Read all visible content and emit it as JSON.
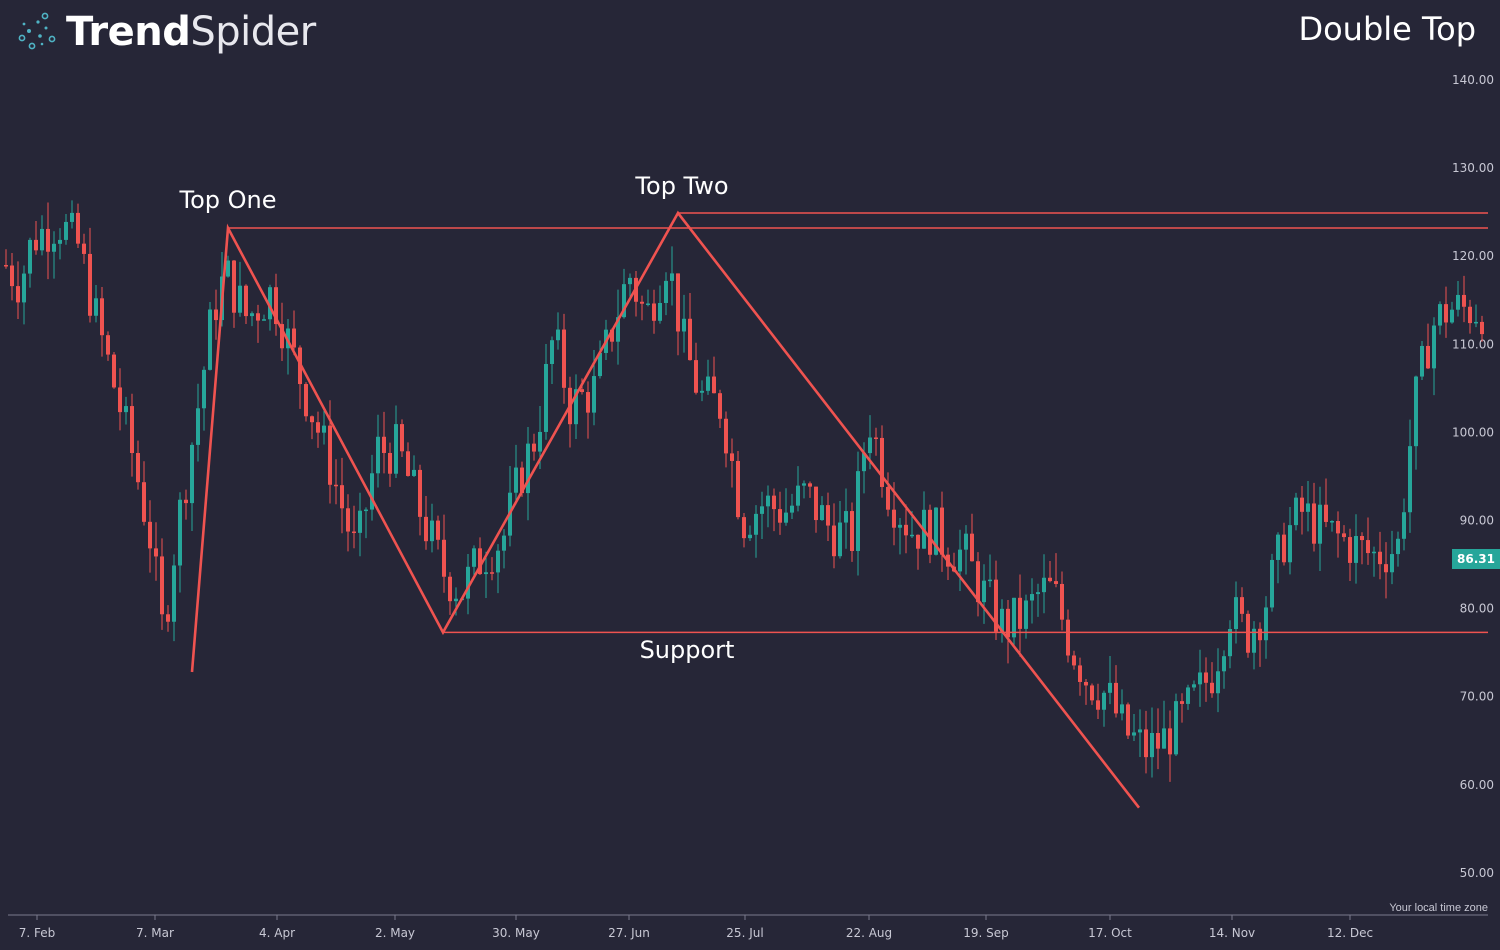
{
  "branding": {
    "logo_bold": "Trend",
    "logo_light": "Spider",
    "logo_icon": "spider-dots-icon"
  },
  "pattern_title": "Double Top",
  "annotations": {
    "top_one": "Top One",
    "top_two": "Top Two",
    "support": "Support"
  },
  "footer": {
    "timezone": "Your local time zone"
  },
  "colors": {
    "background": "#262637",
    "bullish": "#26a69a",
    "bearish": "#ef5350",
    "pattern_line": "#ef5350",
    "axis_text": "#c8c8d4",
    "last_price_bg": "#26a69a"
  },
  "chart_data": {
    "type": "candlestick",
    "title": "Double Top",
    "price_axis": {
      "ticks": [
        "140.00",
        "130.00",
        "120.00",
        "110.00",
        "100.00",
        "90.00",
        "80.00",
        "70.00",
        "60.00",
        "50.00"
      ],
      "range": [
        46,
        147
      ]
    },
    "time_axis": {
      "ticks": [
        "7. Feb",
        "7. Mar",
        "4. Apr",
        "2. May",
        "30. May",
        "27. Jun",
        "25. Jul",
        "22. Aug",
        "19. Sep",
        "17. Oct",
        "14. Nov",
        "12. Dec"
      ]
    },
    "last_price": "86.31",
    "horizontal_levels": [
      {
        "label": "Top One",
        "price": 123.2
      },
      {
        "label": "Top Two",
        "price": 124.9
      },
      {
        "label": "Support",
        "price": 77.3
      }
    ],
    "zigzag": [
      {
        "date": "Mar 9",
        "price": 72.8
      },
      {
        "date": "Mar 24",
        "price": 123.2
      },
      {
        "date": "May 19",
        "price": 77.3
      },
      {
        "date": "Jul 7",
        "price": 124.9
      },
      {
        "date": "Oct 26",
        "price": 57.4
      }
    ],
    "price_path": [
      {
        "date": "Jan 28",
        "price": 119
      },
      {
        "date": "Feb 1",
        "price": 117
      },
      {
        "date": "Feb 6",
        "price": 122
      },
      {
        "date": "Feb 12",
        "price": 124
      },
      {
        "date": "Feb 17",
        "price": 121
      },
      {
        "date": "Feb 21",
        "price": 113
      },
      {
        "date": "Feb 25",
        "price": 106
      },
      {
        "date": "Mar 2",
        "price": 97
      },
      {
        "date": "Mar 6",
        "price": 88
      },
      {
        "date": "Mar 9",
        "price": 77
      },
      {
        "date": "Mar 12",
        "price": 88
      },
      {
        "date": "Mar 17",
        "price": 102
      },
      {
        "date": "Mar 21",
        "price": 114
      },
      {
        "date": "Mar 24",
        "price": 118
      },
      {
        "date": "Mar 29",
        "price": 113
      },
      {
        "date": "Apr 4",
        "price": 116
      },
      {
        "date": "Apr 8",
        "price": 110
      },
      {
        "date": "Apr 13",
        "price": 103
      },
      {
        "date": "Apr 18",
        "price": 96
      },
      {
        "date": "Apr 24",
        "price": 86
      },
      {
        "date": "Apr 29",
        "price": 98
      },
      {
        "date": "May 4",
        "price": 98
      },
      {
        "date": "May 10",
        "price": 90
      },
      {
        "date": "May 15",
        "price": 84
      },
      {
        "date": "May 19",
        "price": 82
      },
      {
        "date": "May 24",
        "price": 86
      },
      {
        "date": "May 29",
        "price": 88
      },
      {
        "date": "Jun 2",
        "price": 95
      },
      {
        "date": "Jun 6",
        "price": 100
      },
      {
        "date": "Jun 10",
        "price": 111
      },
      {
        "date": "Jun 14",
        "price": 103
      },
      {
        "date": "Jun 20",
        "price": 105
      },
      {
        "date": "Jun 24",
        "price": 112
      },
      {
        "date": "Jun 28",
        "price": 118
      },
      {
        "date": "Jul 2",
        "price": 113
      },
      {
        "date": "Jul 7",
        "price": 120
      },
      {
        "date": "Jul 11",
        "price": 110
      },
      {
        "date": "Jul 15",
        "price": 104
      },
      {
        "date": "Jul 20",
        "price": 103
      },
      {
        "date": "Jul 25",
        "price": 90
      },
      {
        "date": "Jul 30",
        "price": 92
      },
      {
        "date": "Aug 4",
        "price": 91
      },
      {
        "date": "Aug 9",
        "price": 93
      },
      {
        "date": "Aug 15",
        "price": 89
      },
      {
        "date": "Aug 20",
        "price": 88
      },
      {
        "date": "Aug 24",
        "price": 102
      },
      {
        "date": "Aug 29",
        "price": 93
      },
      {
        "date": "Sep 3",
        "price": 89
      },
      {
        "date": "Sep 8",
        "price": 89
      },
      {
        "date": "Sep 12",
        "price": 87
      },
      {
        "date": "Sep 16",
        "price": 86
      },
      {
        "date": "Sep 20",
        "price": 82
      },
      {
        "date": "Sep 25",
        "price": 78
      },
      {
        "date": "Sep 30",
        "price": 79
      },
      {
        "date": "Oct 4",
        "price": 82
      },
      {
        "date": "Oct 7",
        "price": 82
      },
      {
        "date": "Oct 11",
        "price": 76
      },
      {
        "date": "Oct 15",
        "price": 72
      },
      {
        "date": "Oct 20",
        "price": 70
      },
      {
        "date": "Oct 24",
        "price": 66
      },
      {
        "date": "Oct 29",
        "price": 64
      },
      {
        "date": "Nov 2",
        "price": 65
      },
      {
        "date": "Nov 6",
        "price": 67
      },
      {
        "date": "Nov 10",
        "price": 70
      },
      {
        "date": "Nov 14",
        "price": 73
      },
      {
        "date": "Nov 18",
        "price": 80
      },
      {
        "date": "Nov 22",
        "price": 77
      },
      {
        "date": "Nov 26",
        "price": 80
      },
      {
        "date": "Dec 1",
        "price": 88
      },
      {
        "date": "Dec 5",
        "price": 91
      },
      {
        "date": "Dec 10",
        "price": 89
      },
      {
        "date": "Dec 14",
        "price": 88
      },
      {
        "date": "Dec 18",
        "price": 87
      },
      {
        "date": "Dec 22",
        "price": 86
      },
      {
        "date": "Dec 28",
        "price": 87
      },
      {
        "date": "Jan 1",
        "price": 103
      },
      {
        "date": "Jan 5",
        "price": 112
      },
      {
        "date": "Jan 9",
        "price": 114
      }
    ]
  }
}
